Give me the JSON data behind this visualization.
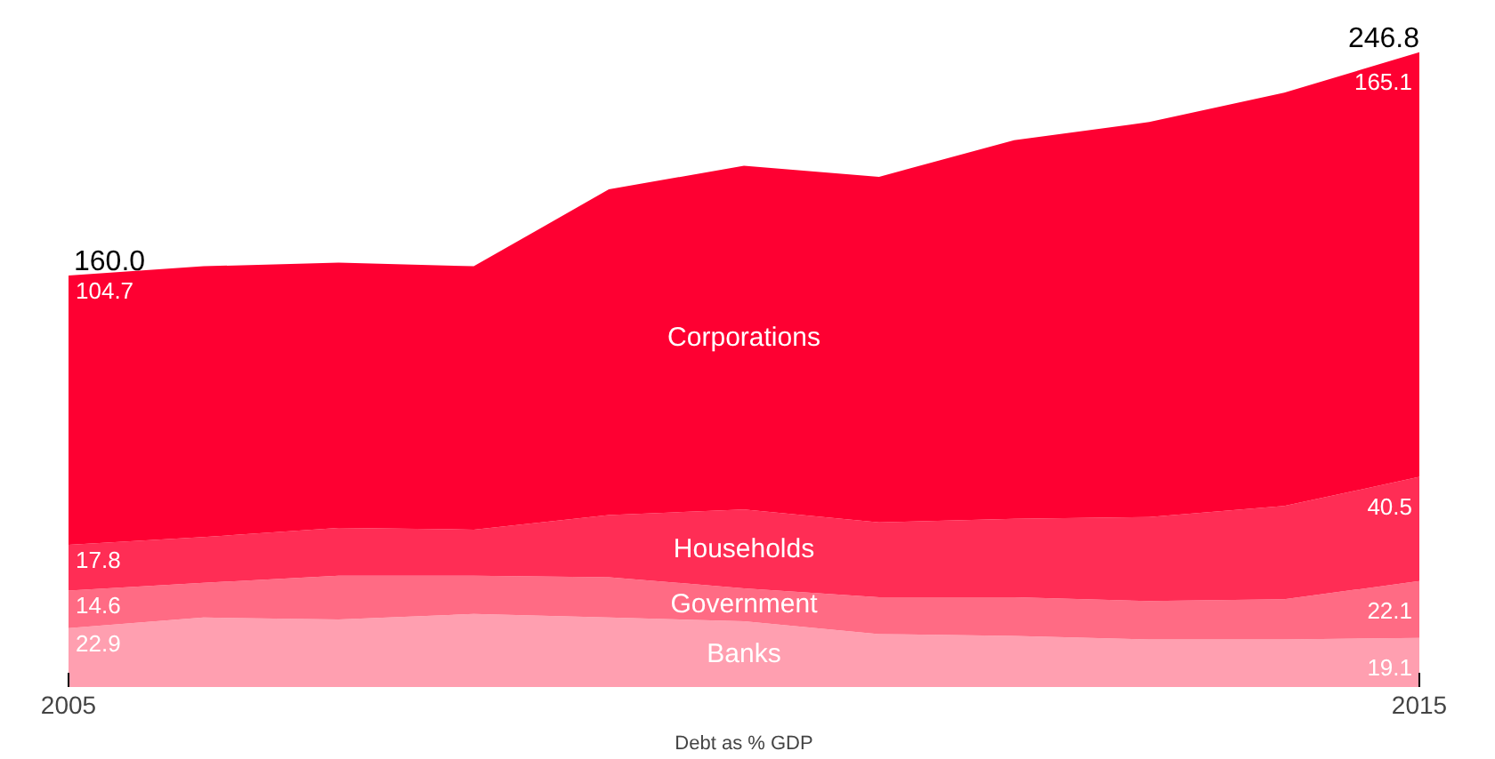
{
  "chart_data": {
    "type": "area",
    "stacked": true,
    "xlabel": "Debt as % GDP",
    "x": [
      2005,
      2006,
      2007,
      2008,
      2009,
      2010,
      2011,
      2012,
      2013,
      2014,
      2015
    ],
    "xlim": [
      2005,
      2015
    ],
    "xticks": [
      2005,
      2015
    ],
    "tick_labels": "x",
    "grid": false,
    "series": [
      {
        "name": "Banks",
        "color": "#ff9fb0",
        "values": [
          22.9,
          27.0,
          26.3,
          28.4,
          27.0,
          25.6,
          20.6,
          19.9,
          18.5,
          18.5,
          19.1
        ],
        "value_labels": [
          "22.9",
          null,
          null,
          null,
          null,
          null,
          null,
          null,
          null,
          null,
          "19.1"
        ]
      },
      {
        "name": "Government",
        "color": "#ff6b84",
        "values": [
          14.6,
          13.5,
          17.0,
          14.9,
          15.7,
          12.8,
          14.3,
          15.0,
          14.9,
          15.6,
          22.1
        ],
        "value_labels": [
          "14.6",
          null,
          null,
          null,
          null,
          null,
          null,
          null,
          null,
          null,
          "22.1"
        ]
      },
      {
        "name": "Households",
        "color": "#ff2d55",
        "values": [
          17.8,
          17.8,
          18.6,
          17.9,
          24.2,
          30.6,
          29.1,
          30.5,
          32.7,
          36.3,
          40.5
        ],
        "value_labels": [
          "17.8",
          null,
          null,
          null,
          null,
          null,
          null,
          null,
          null,
          null,
          "40.5"
        ]
      },
      {
        "name": "Corporations",
        "color": "#fe0032",
        "values": [
          104.7,
          105.3,
          103.1,
          102.4,
          126.6,
          133.7,
          134.4,
          147.2,
          153.6,
          160.7,
          165.1
        ],
        "value_labels": [
          "104.7",
          null,
          null,
          null,
          null,
          null,
          null,
          null,
          null,
          null,
          "165.1"
        ]
      }
    ],
    "totals": [
      "160.0",
      null,
      null,
      null,
      null,
      null,
      null,
      null,
      null,
      null,
      "246.8"
    ]
  }
}
